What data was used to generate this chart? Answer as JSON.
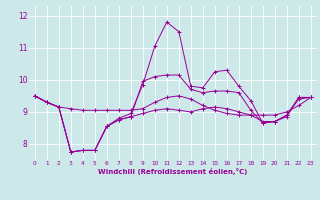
{
  "xlabel": "Windchill (Refroidissement éolien,°C)",
  "bg_color": "#cce8e8",
  "line_color": "#990099",
  "grid_color": "#ffffff",
  "xmin": -0.5,
  "xmax": 23.5,
  "ymin": 7.5,
  "ymax": 12.3,
  "yticks": [
    8,
    9,
    10,
    11,
    12
  ],
  "xticks": [
    0,
    1,
    2,
    3,
    4,
    5,
    6,
    7,
    8,
    9,
    10,
    11,
    12,
    13,
    14,
    15,
    16,
    17,
    18,
    19,
    20,
    21,
    22,
    23
  ],
  "series": [
    [
      9.5,
      9.3,
      9.15,
      7.75,
      7.8,
      7.8,
      8.55,
      8.75,
      8.85,
      8.95,
      9.05,
      9.1,
      9.05,
      9.0,
      9.1,
      9.15,
      9.1,
      9.0,
      8.9,
      8.7,
      8.7,
      8.9,
      9.45,
      9.45
    ],
    [
      9.5,
      9.3,
      9.15,
      9.1,
      9.05,
      9.05,
      9.05,
      9.05,
      9.05,
      9.1,
      9.3,
      9.45,
      9.5,
      9.4,
      9.2,
      9.05,
      8.95,
      8.9,
      8.9,
      8.9,
      8.9,
      9.0,
      9.2,
      9.45
    ],
    [
      9.5,
      9.3,
      9.15,
      7.75,
      7.8,
      7.8,
      8.55,
      8.8,
      8.95,
      9.85,
      11.05,
      11.8,
      11.5,
      9.8,
      9.75,
      10.25,
      10.3,
      9.8,
      9.35,
      8.65,
      8.7,
      8.85,
      9.45,
      9.45
    ],
    [
      9.5,
      9.3,
      9.15,
      7.75,
      7.8,
      7.8,
      8.55,
      8.75,
      8.85,
      9.95,
      10.1,
      10.15,
      10.15,
      9.7,
      9.6,
      9.65,
      9.65,
      9.6,
      9.05,
      8.65,
      8.7,
      8.9,
      9.4,
      9.45
    ]
  ]
}
